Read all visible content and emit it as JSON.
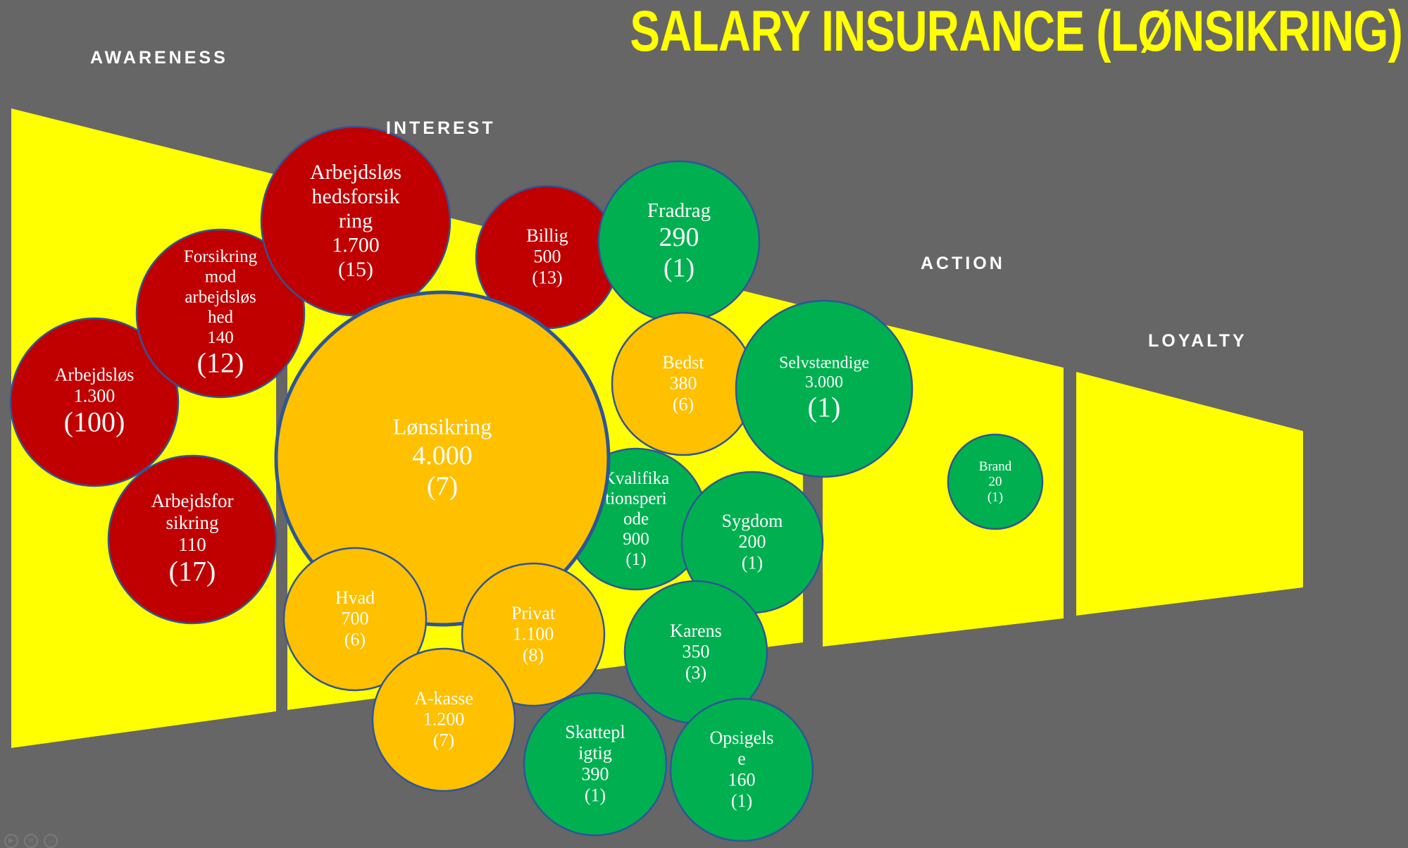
{
  "title": "SALARY INSURANCE (LØNSIKRING)",
  "stages": {
    "awareness": "AWARENESS",
    "interest": "INTEREST",
    "action": "ACTION",
    "loyalty": "LOYALTY"
  },
  "colors": {
    "background": "#666666",
    "funnel": "#FFFF00",
    "red": "#C00000",
    "orange": "#FFC000",
    "green": "#00B050",
    "outline": "#2F5597"
  },
  "bubbles": [
    {
      "id": "arbejdsloshedsforsikring",
      "lines": [
        "Arbejdsløs",
        "hedsforsik",
        "ring",
        "1.700",
        "(15)"
      ],
      "color": "red"
    },
    {
      "id": "forsikring-mod-arbejdsloshed",
      "lines": [
        "Forsikring",
        "mod",
        "arbejdsløs",
        "hed",
        "140",
        "(12)"
      ],
      "color": "red"
    },
    {
      "id": "arbejdslos",
      "lines": [
        "Arbejdsløs",
        "1.300",
        "(100)"
      ],
      "color": "red"
    },
    {
      "id": "arbejdsforsikring",
      "lines": [
        "Arbejdsfor",
        "sikring",
        "110",
        "(17)"
      ],
      "color": "red"
    },
    {
      "id": "billig",
      "lines": [
        "Billig",
        "500",
        "(13)"
      ],
      "color": "red"
    },
    {
      "id": "fradrag",
      "lines": [
        "Fradrag",
        "290",
        "(1)"
      ],
      "color": "green"
    },
    {
      "id": "kvalifikationsperiode",
      "lines": [
        "Kvalifika",
        "tionsperi",
        "ode",
        "900",
        "(1)"
      ],
      "color": "green"
    },
    {
      "id": "lonsikring",
      "lines": [
        "Lønsikring",
        "4.000",
        "(7)"
      ],
      "color": "orange"
    },
    {
      "id": "bedst",
      "lines": [
        "Bedst",
        "380",
        "(6)"
      ],
      "color": "orange"
    },
    {
      "id": "selvstaendige",
      "lines": [
        "Selvstændige",
        "3.000",
        "(1)"
      ],
      "color": "green"
    },
    {
      "id": "sygdom",
      "lines": [
        "Sygdom",
        "200",
        "(1)"
      ],
      "color": "green"
    },
    {
      "id": "hvad",
      "lines": [
        "Hvad",
        "700",
        "(6)"
      ],
      "color": "orange"
    },
    {
      "id": "privat",
      "lines": [
        "Privat",
        "1.100",
        "(8)"
      ],
      "color": "orange"
    },
    {
      "id": "karens",
      "lines": [
        "Karens",
        "350",
        "(3)"
      ],
      "color": "green"
    },
    {
      "id": "a-kasse",
      "lines": [
        "A-kasse",
        "1.200",
        "(7)"
      ],
      "color": "orange"
    },
    {
      "id": "skattepligtig",
      "lines": [
        "Skattepl",
        "igtig",
        "390",
        "(1)"
      ],
      "color": "green"
    },
    {
      "id": "opsigelse",
      "lines": [
        "Opsigels",
        "e",
        "160",
        "(1)"
      ],
      "color": "green"
    },
    {
      "id": "brand",
      "lines": [
        "Brand",
        "20",
        "(1)"
      ],
      "color": "green"
    }
  ]
}
